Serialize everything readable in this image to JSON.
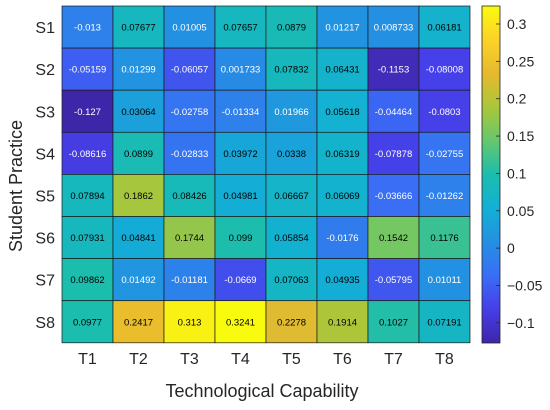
{
  "chart_data": {
    "type": "heatmap",
    "xlabel": "Technological Capability",
    "ylabel": "Student Practice",
    "x_categories": [
      "T1",
      "T2",
      "T3",
      "T4",
      "T5",
      "T6",
      "T7",
      "T8"
    ],
    "y_categories": [
      "S1",
      "S2",
      "S3",
      "S4",
      "S5",
      "S6",
      "S7",
      "S8"
    ],
    "values": [
      [
        -0.013,
        0.07677,
        0.01005,
        0.07657,
        0.0879,
        0.01217,
        0.008733,
        0.06181
      ],
      [
        -0.05159,
        0.01299,
        -0.06057,
        0.001733,
        0.07832,
        0.06431,
        -0.1153,
        -0.08008
      ],
      [
        -0.127,
        0.03064,
        -0.02758,
        -0.01334,
        0.01966,
        0.05618,
        -0.04464,
        -0.0803
      ],
      [
        -0.08616,
        0.0899,
        -0.02833,
        0.03972,
        0.0338,
        0.06319,
        -0.07878,
        -0.02755
      ],
      [
        0.07894,
        0.1862,
        0.08426,
        0.04981,
        0.06667,
        0.06069,
        -0.03666,
        -0.01262
      ],
      [
        0.07931,
        0.04841,
        0.1744,
        0.099,
        0.05854,
        -0.0176,
        0.1542,
        0.1176
      ],
      [
        0.09862,
        0.01492,
        -0.01181,
        -0.0669,
        0.07063,
        0.04935,
        -0.05795,
        0.01011
      ],
      [
        0.0977,
        0.2417,
        0.313,
        0.3241,
        0.2278,
        0.1914,
        0.1027,
        0.07191
      ]
    ],
    "labels": [
      [
        "-0.013",
        "0.07677",
        "0.01005",
        "0.07657",
        "0.0879",
        "0.01217",
        "0.008733",
        "0.06181"
      ],
      [
        "-0.05159",
        "0.01299",
        "-0.06057",
        "0.001733",
        "0.07832",
        "0.06431",
        "-0.1153",
        "-0.08008"
      ],
      [
        "-0.127",
        "0.03064",
        "-0.02758",
        "-0.01334",
        "0.01966",
        "0.05618",
        "-0.04464",
        "-0.0803"
      ],
      [
        "-0.08616",
        "0.0899",
        "-0.02833",
        "0.03972",
        "0.0338",
        "0.06319",
        "-0.07878",
        "-0.02755"
      ],
      [
        "0.07894",
        "0.1862",
        "0.08426",
        "0.04981",
        "0.06667",
        "0.06069",
        "-0.03666",
        "-0.01262"
      ],
      [
        "0.07931",
        "0.04841",
        "0.1744",
        "0.099",
        "0.05854",
        "-0.0176",
        "0.1542",
        "0.1176"
      ],
      [
        "0.09862",
        "0.01492",
        "-0.01181",
        "-0.0669",
        "0.07063",
        "0.04935",
        "-0.05795",
        "0.01011"
      ],
      [
        "0.0977",
        "0.2417",
        "0.313",
        "0.3241",
        "0.2278",
        "0.1914",
        "0.1027",
        "0.07191"
      ]
    ],
    "colorbar": {
      "colormap": "parula",
      "range": [
        -0.127,
        0.3241
      ],
      "ticks": [
        -0.1,
        -0.05,
        0,
        0.05,
        0.1,
        0.15,
        0.2,
        0.25,
        0.3
      ],
      "tick_labels": [
        "−0.1",
        "−0.05",
        "0",
        "0.05",
        "0.1",
        "0.15",
        "0.2",
        "0.25",
        "0.3"
      ]
    }
  }
}
